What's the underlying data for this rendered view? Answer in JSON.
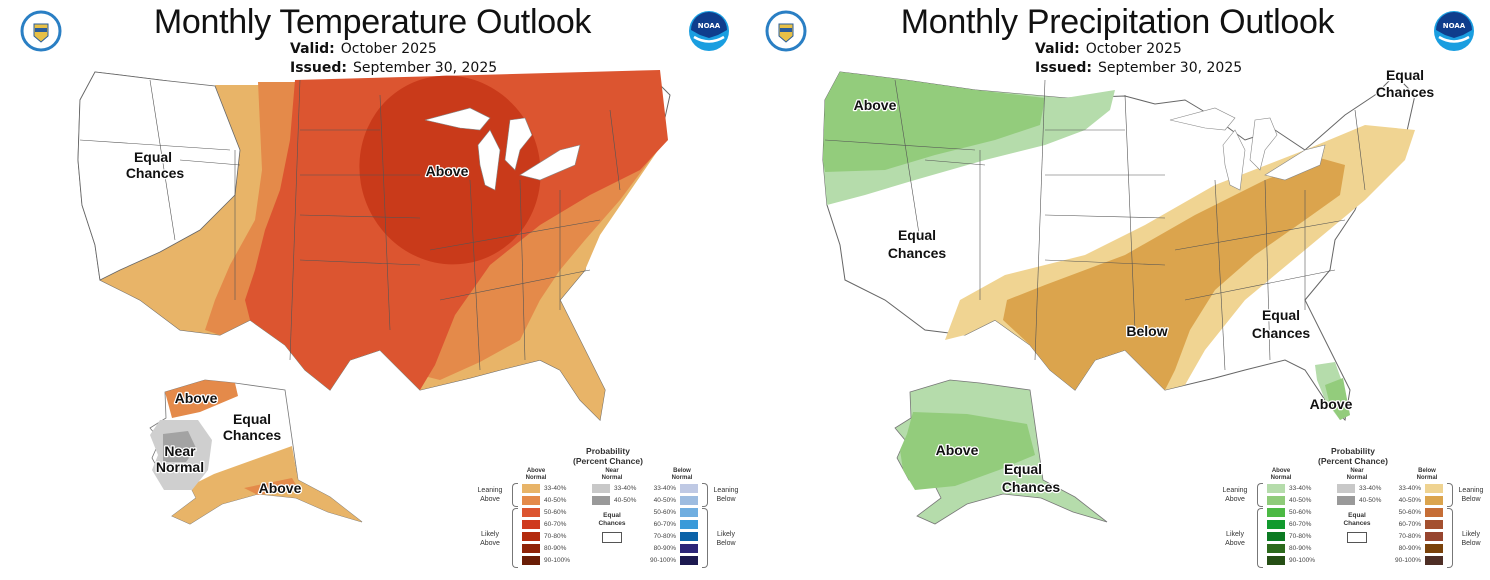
{
  "temperature": {
    "title": "Monthly Temperature Outlook",
    "valid_label": "Valid:",
    "valid_value": "October 2025",
    "issued_label": "Issued:",
    "issued_value": "September 30, 2025",
    "map_labels": {
      "west_ec_line1": "Equal",
      "west_ec_line2": "Chances",
      "midwest_above": "Above",
      "ak_north_above": "Above",
      "ak_ec_line1": "Equal",
      "ak_ec_line2": "Chances",
      "ak_nn_line1": "Near",
      "ak_nn_line2": "Normal",
      "ak_south_above": "Above"
    },
    "legend": {
      "title_line1": "Probability",
      "title_line2": "(Percent Chance)",
      "left_head_line1": "Above",
      "left_head_line2": "Normal",
      "mid_head_line1": "Near",
      "mid_head_line2": "Normal",
      "right_head_line1": "Below",
      "right_head_line2": "Normal",
      "left_leaning_line1": "Leaning",
      "left_leaning_line2": "Above",
      "left_likely_line1": "Likely",
      "left_likely_line2": "Above",
      "right_leaning_line1": "Leaning",
      "right_leaning_line2": "Below",
      "right_likely_line1": "Likely",
      "right_likely_line2": "Below",
      "ec_line1": "Equal",
      "ec_line2": "Chances",
      "left_ranges": [
        "33-40%",
        "40-50%",
        "50-60%",
        "60-70%",
        "70-80%",
        "80-90%",
        "90-100%"
      ],
      "left_colors": [
        "#e8b468",
        "#e48a4a",
        "#dc5530",
        "#cf3a1e",
        "#b32a0d",
        "#8f2308",
        "#6a1d06"
      ],
      "near_ranges": [
        "33-40%",
        "40-50%"
      ],
      "near_colors": [
        "#c8c8c8",
        "#999999"
      ],
      "right_ranges": [
        "33-40%",
        "40-50%",
        "50-60%",
        "60-70%",
        "70-80%",
        "80-90%",
        "90-100%"
      ],
      "right_colors": [
        "#bfc9e4",
        "#9dbce0",
        "#70aee0",
        "#3a9ad9",
        "#0a62a8",
        "#2b2478",
        "#1c1950"
      ]
    }
  },
  "precipitation": {
    "title": "Monthly Precipitation Outlook",
    "valid_label": "Valid:",
    "valid_value": "October 2025",
    "issued_label": "Issued:",
    "issued_value": "September 30, 2025",
    "map_labels": {
      "nw_above": "Above",
      "ne_ec_line1": "Equal",
      "ne_ec_line2": "Chances",
      "west_ec_line1": "Equal",
      "west_ec_line2": "Chances",
      "south_below": "Below",
      "se_ec_line1": "Equal",
      "se_ec_line2": "Chances",
      "fl_above": "Above",
      "ak_above": "Above",
      "ak_ec_line1": "Equal",
      "ak_ec_line2": "Chances"
    },
    "legend": {
      "title_line1": "Probability",
      "title_line2": "(Percent Chance)",
      "left_head_line1": "Above",
      "left_head_line2": "Normal",
      "mid_head_line1": "Near",
      "mid_head_line2": "Normal",
      "right_head_line1": "Below",
      "right_head_line2": "Normal",
      "left_leaning_line1": "Leaning",
      "left_leaning_line2": "Above",
      "left_likely_line1": "Likely",
      "left_likely_line2": "Above",
      "right_leaning_line1": "Leaning",
      "right_leaning_line2": "Below",
      "right_likely_line1": "Likely",
      "right_likely_line2": "Below",
      "ec_line1": "Equal",
      "ec_line2": "Chances",
      "left_ranges": [
        "33-40%",
        "40-50%",
        "50-60%",
        "60-70%",
        "70-80%",
        "80-90%",
        "90-100%"
      ],
      "left_colors": [
        "#b5dcab",
        "#8fcb7a",
        "#4cb944",
        "#119a2e",
        "#0b7a22",
        "#2c6a1c",
        "#254e14"
      ],
      "near_ranges": [
        "33-40%",
        "40-50%"
      ],
      "near_colors": [
        "#c8c8c8",
        "#999999"
      ],
      "right_ranges": [
        "33-40%",
        "40-50%",
        "50-60%",
        "60-70%",
        "70-80%",
        "80-90%",
        "90-100%"
      ],
      "right_colors": [
        "#efd391",
        "#dba44d",
        "#c66e36",
        "#a4502f",
        "#97452f",
        "#7a420a",
        "#4e2e25"
      ]
    }
  },
  "colors": {
    "temp_lean_above": "#e8b468",
    "temp_40_50": "#e48a4a",
    "temp_50_60": "#dc5530",
    "temp_60_70": "#c93a1a",
    "near_normal_light": "#cfcfcf",
    "near_normal_dark": "#a3a3a3",
    "precip_lean_above": "#b5dcab",
    "precip_40_50_above": "#93cc7c",
    "precip_lean_below": "#f0d492",
    "precip_40_50_below": "#dba44d"
  }
}
